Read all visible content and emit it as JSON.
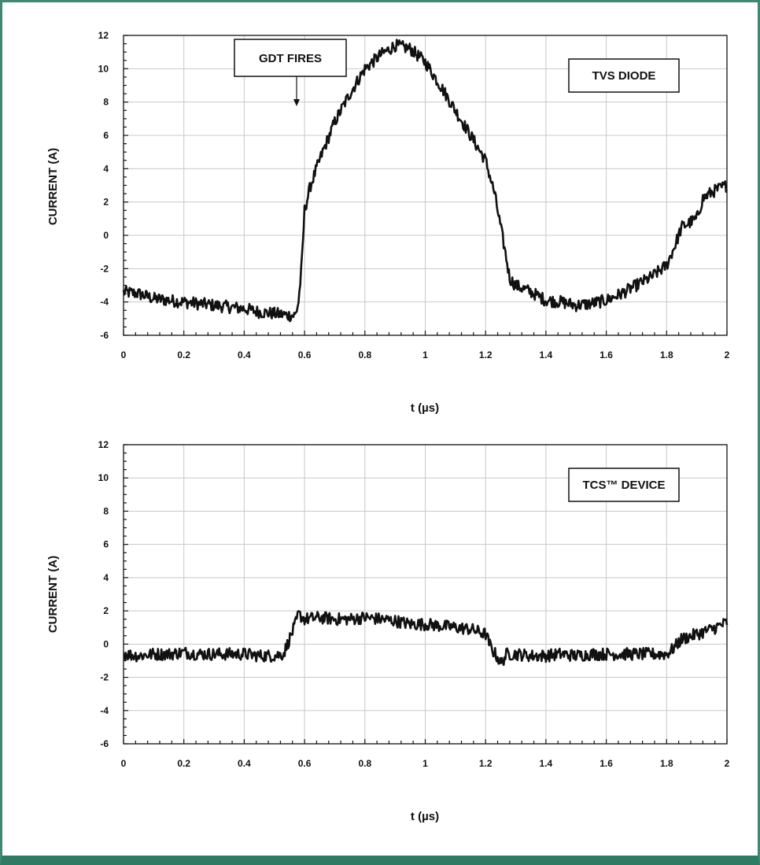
{
  "chart_data": [
    {
      "type": "line",
      "xlabel": "t (µs)",
      "ylabel": "CURRENT (A)",
      "xlim": [
        0,
        2
      ],
      "ylim": [
        -6,
        12
      ],
      "x_ticks": [
        "0",
        "0.2",
        "0.4",
        "0.6",
        "0.8",
        "1",
        "1.2",
        "1.4",
        "1.6",
        "1.8",
        "2"
      ],
      "y_ticks": [
        "12",
        "10",
        "8",
        "6",
        "4",
        "2",
        "0",
        "-2",
        "-4",
        "-6"
      ],
      "grid": true,
      "annotations": [
        {
          "text": "TVS DIODE"
        },
        {
          "text": "GDT FIRES",
          "arrow_x": 0.58
        }
      ],
      "series": [
        {
          "x": [
            0,
            0.05,
            0.1,
            0.15,
            0.2,
            0.25,
            0.3,
            0.35,
            0.4,
            0.45,
            0.5,
            0.55,
            0.57,
            0.58,
            0.59,
            0.6,
            0.62,
            0.64,
            0.66,
            0.7,
            0.75,
            0.8,
            0.85,
            0.9,
            0.95,
            1.0,
            1.05,
            1.1,
            1.15,
            1.2,
            1.23,
            1.25,
            1.27,
            1.28,
            1.3,
            1.35,
            1.4,
            1.45,
            1.5,
            1.55,
            1.6,
            1.65,
            1.7,
            1.75,
            1.8,
            1.83,
            1.85,
            1.88,
            1.9,
            1.92,
            1.95,
            2.0
          ],
          "values": [
            -3.4,
            -3.5,
            -3.8,
            -3.9,
            -4.0,
            -4.1,
            -4.2,
            -4.3,
            -4.4,
            -4.6,
            -4.7,
            -4.8,
            -4.8,
            -4.0,
            -2.0,
            1.5,
            3.0,
            4.0,
            5.0,
            6.8,
            8.5,
            10.0,
            10.8,
            11.4,
            11.2,
            10.4,
            9.0,
            7.5,
            6.0,
            4.5,
            2.5,
            0.5,
            -1.5,
            -2.6,
            -3.0,
            -3.4,
            -3.9,
            -4.0,
            -4.2,
            -4.1,
            -3.9,
            -3.5,
            -3.0,
            -2.5,
            -1.8,
            -0.5,
            0.5,
            0.8,
            1.0,
            2.2,
            2.6,
            3.0
          ]
        }
      ]
    },
    {
      "type": "line",
      "xlabel": "t (µs)",
      "ylabel": "CURRENT (A)",
      "xlim": [
        0,
        2
      ],
      "ylim": [
        -6,
        12
      ],
      "x_ticks": [
        "0",
        "0.2",
        "0.4",
        "0.6",
        "0.8",
        "1",
        "1.2",
        "1.4",
        "1.6",
        "1.8",
        "2"
      ],
      "y_ticks": [
        "12",
        "10",
        "8",
        "6",
        "4",
        "2",
        "0",
        "-2",
        "-4",
        "-6"
      ],
      "grid": true,
      "annotations": [
        {
          "text": "TCS™ DEVICE"
        }
      ],
      "series": [
        {
          "x": [
            0,
            0.05,
            0.1,
            0.15,
            0.2,
            0.25,
            0.3,
            0.35,
            0.4,
            0.45,
            0.5,
            0.53,
            0.55,
            0.57,
            0.58,
            0.6,
            0.65,
            0.7,
            0.75,
            0.8,
            0.85,
            0.9,
            0.95,
            1.0,
            1.05,
            1.1,
            1.15,
            1.2,
            1.22,
            1.24,
            1.25,
            1.27,
            1.3,
            1.35,
            1.4,
            1.45,
            1.5,
            1.55,
            1.6,
            1.65,
            1.7,
            1.75,
            1.8,
            1.82,
            1.85,
            1.9,
            1.95,
            2.0
          ],
          "values": [
            -0.6,
            -0.7,
            -0.6,
            -0.6,
            -0.5,
            -0.6,
            -0.6,
            -0.6,
            -0.6,
            -0.7,
            -0.7,
            -0.6,
            0.3,
            1.2,
            1.8,
            1.5,
            1.6,
            1.5,
            1.5,
            1.6,
            1.5,
            1.4,
            1.2,
            1.2,
            1.1,
            1.0,
            0.9,
            0.6,
            -0.3,
            -0.8,
            -1.2,
            -0.6,
            -0.6,
            -0.7,
            -0.7,
            -0.6,
            -0.7,
            -0.6,
            -0.6,
            -0.6,
            -0.6,
            -0.6,
            -0.6,
            -0.3,
            0.3,
            0.6,
            0.9,
            1.3
          ]
        }
      ]
    }
  ],
  "colors": {
    "frame_border": "#3d8a72",
    "frame_bottom": "#2f7a62",
    "grid": "#c8c8c8",
    "trace": "#111111"
  }
}
